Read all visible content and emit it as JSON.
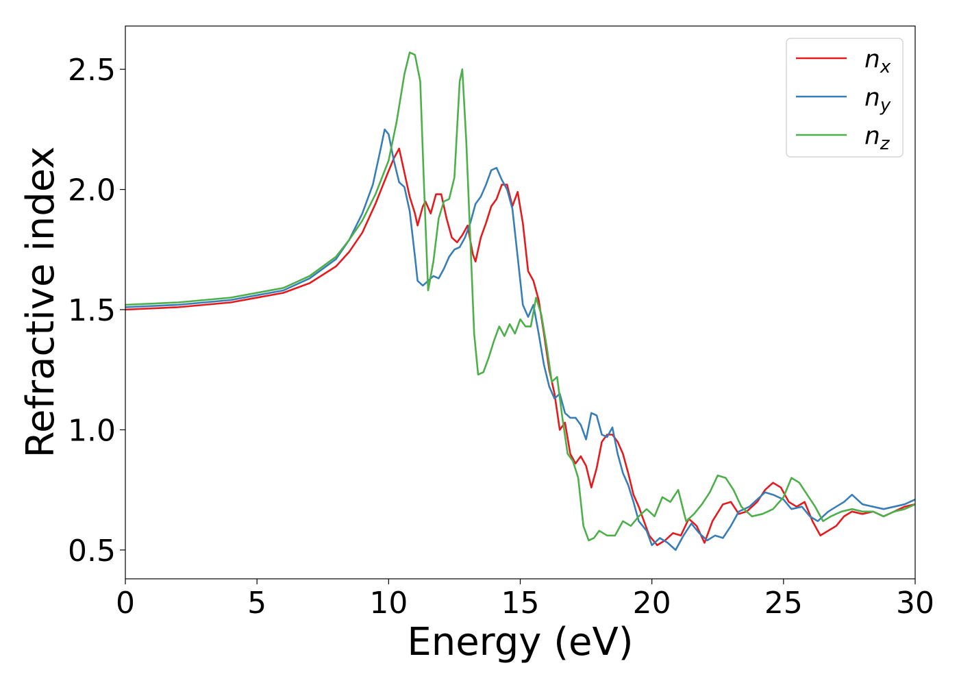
{
  "chart_data": {
    "type": "line",
    "xlabel": "Energy (eV)",
    "ylabel": "Refractive index",
    "xlim": [
      0,
      30
    ],
    "ylim": [
      0.38,
      2.68
    ],
    "xticks": [
      0,
      5,
      10,
      15,
      20,
      25,
      30
    ],
    "xtick_labels": [
      "0",
      "5",
      "10",
      "15",
      "20",
      "25",
      "30"
    ],
    "yticks": [
      0.5,
      1.0,
      1.5,
      2.0,
      2.5
    ],
    "ytick_labels": [
      "0.5",
      "1.0",
      "1.5",
      "2.0",
      "2.5"
    ],
    "grid": false,
    "legend_position": "top-right",
    "series": [
      {
        "name": "n",
        "subscript": "x",
        "color": "#e41a1c",
        "points": [
          [
            0,
            1.5
          ],
          [
            2,
            1.51
          ],
          [
            4,
            1.53
          ],
          [
            6,
            1.57
          ],
          [
            7,
            1.61
          ],
          [
            8,
            1.68
          ],
          [
            8.5,
            1.74
          ],
          [
            9,
            1.82
          ],
          [
            9.5,
            1.94
          ],
          [
            9.9,
            2.05
          ],
          [
            10.2,
            2.13
          ],
          [
            10.4,
            2.17
          ],
          [
            10.6,
            2.07
          ],
          [
            10.8,
            1.97
          ],
          [
            11.0,
            1.9
          ],
          [
            11.1,
            1.85
          ],
          [
            11.3,
            1.93
          ],
          [
            11.4,
            1.95
          ],
          [
            11.6,
            1.9
          ],
          [
            11.8,
            1.98
          ],
          [
            12.0,
            1.98
          ],
          [
            12.2,
            1.88
          ],
          [
            12.4,
            1.8
          ],
          [
            12.6,
            1.78
          ],
          [
            12.8,
            1.81
          ],
          [
            13.0,
            1.85
          ],
          [
            13.2,
            1.73
          ],
          [
            13.3,
            1.7
          ],
          [
            13.5,
            1.8
          ],
          [
            13.7,
            1.86
          ],
          [
            13.9,
            1.93
          ],
          [
            14.1,
            1.96
          ],
          [
            14.3,
            2.02
          ],
          [
            14.5,
            2.02
          ],
          [
            14.7,
            1.93
          ],
          [
            14.9,
            1.99
          ],
          [
            15.1,
            1.86
          ],
          [
            15.3,
            1.66
          ],
          [
            15.5,
            1.62
          ],
          [
            15.7,
            1.54
          ],
          [
            15.9,
            1.4
          ],
          [
            16.1,
            1.25
          ],
          [
            16.3,
            1.15
          ],
          [
            16.5,
            1.0
          ],
          [
            16.7,
            1.03
          ],
          [
            16.9,
            0.9
          ],
          [
            17.1,
            0.86
          ],
          [
            17.3,
            0.89
          ],
          [
            17.5,
            0.85
          ],
          [
            17.7,
            0.76
          ],
          [
            17.9,
            0.84
          ],
          [
            18.1,
            0.95
          ],
          [
            18.3,
            0.98
          ],
          [
            18.5,
            0.98
          ],
          [
            18.7,
            0.95
          ],
          [
            18.9,
            0.9
          ],
          [
            19.1,
            0.82
          ],
          [
            19.3,
            0.73
          ],
          [
            19.5,
            0.68
          ],
          [
            19.7,
            0.62
          ],
          [
            19.9,
            0.56
          ],
          [
            20.2,
            0.52
          ],
          [
            20.5,
            0.54
          ],
          [
            20.8,
            0.57
          ],
          [
            21.1,
            0.56
          ],
          [
            21.4,
            0.63
          ],
          [
            21.7,
            0.6
          ],
          [
            22.0,
            0.53
          ],
          [
            22.3,
            0.62
          ],
          [
            22.7,
            0.69
          ],
          [
            23.0,
            0.7
          ],
          [
            23.3,
            0.65
          ],
          [
            23.6,
            0.66
          ],
          [
            24.0,
            0.7
          ],
          [
            24.3,
            0.75
          ],
          [
            24.6,
            0.78
          ],
          [
            24.9,
            0.76
          ],
          [
            25.2,
            0.7
          ],
          [
            25.5,
            0.68
          ],
          [
            25.8,
            0.7
          ],
          [
            26.1,
            0.62
          ],
          [
            26.4,
            0.56
          ],
          [
            26.7,
            0.58
          ],
          [
            27.0,
            0.6
          ],
          [
            27.3,
            0.64
          ],
          [
            27.6,
            0.66
          ],
          [
            28.0,
            0.65
          ],
          [
            28.4,
            0.66
          ],
          [
            28.8,
            0.64
          ],
          [
            29.2,
            0.66
          ],
          [
            29.6,
            0.68
          ],
          [
            30.0,
            0.69
          ]
        ]
      },
      {
        "name": "n",
        "subscript": "y",
        "color": "#377eb8",
        "points": [
          [
            0,
            1.51
          ],
          [
            2,
            1.52
          ],
          [
            4,
            1.54
          ],
          [
            6,
            1.58
          ],
          [
            7,
            1.63
          ],
          [
            8,
            1.71
          ],
          [
            8.5,
            1.79
          ],
          [
            9,
            1.9
          ],
          [
            9.4,
            2.02
          ],
          [
            9.7,
            2.17
          ],
          [
            9.85,
            2.25
          ],
          [
            10.0,
            2.23
          ],
          [
            10.2,
            2.12
          ],
          [
            10.4,
            2.03
          ],
          [
            10.6,
            2.01
          ],
          [
            10.8,
            1.91
          ],
          [
            11.0,
            1.72
          ],
          [
            11.1,
            1.62
          ],
          [
            11.3,
            1.6
          ],
          [
            11.5,
            1.62
          ],
          [
            11.7,
            1.64
          ],
          [
            11.9,
            1.63
          ],
          [
            12.1,
            1.67
          ],
          [
            12.3,
            1.72
          ],
          [
            12.5,
            1.75
          ],
          [
            12.7,
            1.76
          ],
          [
            12.9,
            1.8
          ],
          [
            13.1,
            1.86
          ],
          [
            13.3,
            1.94
          ],
          [
            13.5,
            1.97
          ],
          [
            13.7,
            2.02
          ],
          [
            13.9,
            2.08
          ],
          [
            14.1,
            2.09
          ],
          [
            14.3,
            2.04
          ],
          [
            14.5,
            2.0
          ],
          [
            14.7,
            1.92
          ],
          [
            14.9,
            1.72
          ],
          [
            15.1,
            1.52
          ],
          [
            15.3,
            1.47
          ],
          [
            15.5,
            1.52
          ],
          [
            15.7,
            1.4
          ],
          [
            15.9,
            1.27
          ],
          [
            16.1,
            1.18
          ],
          [
            16.3,
            1.13
          ],
          [
            16.5,
            1.15
          ],
          [
            16.7,
            1.07
          ],
          [
            16.9,
            1.05
          ],
          [
            17.1,
            1.05
          ],
          [
            17.3,
            1.02
          ],
          [
            17.5,
            0.96
          ],
          [
            17.7,
            1.07
          ],
          [
            17.9,
            1.06
          ],
          [
            18.1,
            0.98
          ],
          [
            18.3,
            0.97
          ],
          [
            18.5,
            1.01
          ],
          [
            18.7,
            0.9
          ],
          [
            18.9,
            0.82
          ],
          [
            19.1,
            0.77
          ],
          [
            19.3,
            0.7
          ],
          [
            19.5,
            0.62
          ],
          [
            19.8,
            0.58
          ],
          [
            20.0,
            0.52
          ],
          [
            20.3,
            0.55
          ],
          [
            20.6,
            0.53
          ],
          [
            20.9,
            0.5
          ],
          [
            21.2,
            0.56
          ],
          [
            21.5,
            0.61
          ],
          [
            21.8,
            0.57
          ],
          [
            22.1,
            0.54
          ],
          [
            22.4,
            0.56
          ],
          [
            22.7,
            0.55
          ],
          [
            23.0,
            0.6
          ],
          [
            23.3,
            0.66
          ],
          [
            23.7,
            0.68
          ],
          [
            24.0,
            0.71
          ],
          [
            24.3,
            0.74
          ],
          [
            24.6,
            0.73
          ],
          [
            25.0,
            0.71
          ],
          [
            25.3,
            0.67
          ],
          [
            25.7,
            0.68
          ],
          [
            26.0,
            0.64
          ],
          [
            26.3,
            0.62
          ],
          [
            26.7,
            0.66
          ],
          [
            27.0,
            0.68
          ],
          [
            27.3,
            0.7
          ],
          [
            27.6,
            0.73
          ],
          [
            28.0,
            0.69
          ],
          [
            28.4,
            0.68
          ],
          [
            28.8,
            0.67
          ],
          [
            29.2,
            0.68
          ],
          [
            29.6,
            0.69
          ],
          [
            30.0,
            0.71
          ]
        ]
      },
      {
        "name": "n",
        "subscript": "z",
        "color": "#4daf4a",
        "points": [
          [
            0,
            1.52
          ],
          [
            2,
            1.53
          ],
          [
            4,
            1.55
          ],
          [
            6,
            1.59
          ],
          [
            7,
            1.64
          ],
          [
            8,
            1.72
          ],
          [
            8.5,
            1.79
          ],
          [
            9,
            1.87
          ],
          [
            9.5,
            1.98
          ],
          [
            10.0,
            2.12
          ],
          [
            10.3,
            2.28
          ],
          [
            10.6,
            2.48
          ],
          [
            10.8,
            2.57
          ],
          [
            11.0,
            2.56
          ],
          [
            11.2,
            2.45
          ],
          [
            11.35,
            2.0
          ],
          [
            11.5,
            1.58
          ],
          [
            11.7,
            1.7
          ],
          [
            11.9,
            1.88
          ],
          [
            12.1,
            1.95
          ],
          [
            12.3,
            1.96
          ],
          [
            12.5,
            2.05
          ],
          [
            12.7,
            2.45
          ],
          [
            12.8,
            2.5
          ],
          [
            12.95,
            2.2
          ],
          [
            13.1,
            1.8
          ],
          [
            13.25,
            1.4
          ],
          [
            13.4,
            1.23
          ],
          [
            13.6,
            1.24
          ],
          [
            13.8,
            1.3
          ],
          [
            14.0,
            1.37
          ],
          [
            14.2,
            1.43
          ],
          [
            14.4,
            1.39
          ],
          [
            14.6,
            1.44
          ],
          [
            14.8,
            1.4
          ],
          [
            15.0,
            1.46
          ],
          [
            15.2,
            1.43
          ],
          [
            15.4,
            1.43
          ],
          [
            15.6,
            1.55
          ],
          [
            15.8,
            1.48
          ],
          [
            16.0,
            1.35
          ],
          [
            16.2,
            1.2
          ],
          [
            16.4,
            1.22
          ],
          [
            16.6,
            1.05
          ],
          [
            16.8,
            0.9
          ],
          [
            17.0,
            0.87
          ],
          [
            17.2,
            0.8
          ],
          [
            17.4,
            0.6
          ],
          [
            17.6,
            0.54
          ],
          [
            17.8,
            0.55
          ],
          [
            18.0,
            0.58
          ],
          [
            18.3,
            0.56
          ],
          [
            18.6,
            0.56
          ],
          [
            18.9,
            0.62
          ],
          [
            19.2,
            0.6
          ],
          [
            19.5,
            0.64
          ],
          [
            19.8,
            0.67
          ],
          [
            20.1,
            0.64
          ],
          [
            20.4,
            0.72
          ],
          [
            20.7,
            0.7
          ],
          [
            21.0,
            0.75
          ],
          [
            21.3,
            0.62
          ],
          [
            21.6,
            0.65
          ],
          [
            21.9,
            0.69
          ],
          [
            22.2,
            0.74
          ],
          [
            22.5,
            0.81
          ],
          [
            22.8,
            0.8
          ],
          [
            23.1,
            0.75
          ],
          [
            23.4,
            0.68
          ],
          [
            23.8,
            0.64
          ],
          [
            24.2,
            0.65
          ],
          [
            24.6,
            0.67
          ],
          [
            25.0,
            0.72
          ],
          [
            25.3,
            0.8
          ],
          [
            25.6,
            0.78
          ],
          [
            25.9,
            0.73
          ],
          [
            26.2,
            0.68
          ],
          [
            26.5,
            0.62
          ],
          [
            26.8,
            0.64
          ],
          [
            27.2,
            0.66
          ],
          [
            27.6,
            0.67
          ],
          [
            28.0,
            0.66
          ],
          [
            28.4,
            0.66
          ],
          [
            28.8,
            0.64
          ],
          [
            29.2,
            0.66
          ],
          [
            29.6,
            0.67
          ],
          [
            30.0,
            0.69
          ]
        ]
      }
    ]
  }
}
